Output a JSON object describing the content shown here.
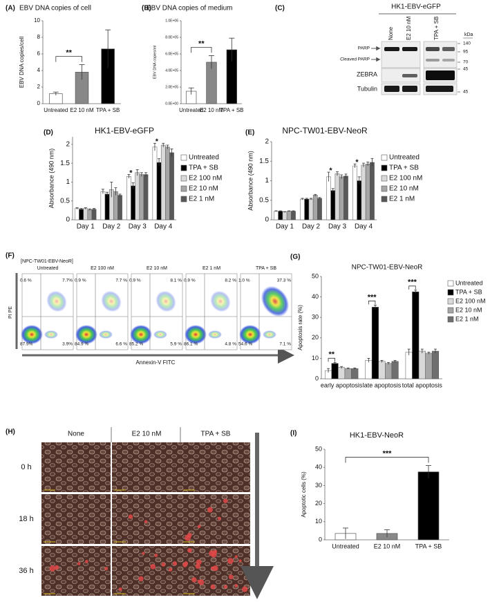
{
  "chart_data": [
    {
      "type": "bar",
      "panel": "(A)",
      "title": "EBV DNA copies  of cell",
      "ylabel": "EBV DNA copies/cell",
      "categories": [
        "Untreated",
        "E2 10 nM",
        "TPA + SB"
      ],
      "values": [
        1.2,
        3.8,
        6.6
      ],
      "errors": [
        0.2,
        0.9,
        2.3
      ],
      "colors": [
        "#ffffff",
        "#888888",
        "#000000"
      ],
      "ylim": [
        0,
        10
      ],
      "yticks": [
        0,
        2,
        4,
        6,
        8,
        10
      ],
      "annotations": [
        "**"
      ]
    },
    {
      "type": "bar",
      "panel": "(B)",
      "title": "EBV DNA copies  of medium",
      "ylabel": "EBV DNA copies/ml",
      "categories": [
        "Untreated",
        "E2 10 nM",
        "TPA + SB"
      ],
      "values": [
        150000,
        500000,
        650000
      ],
      "errors": [
        40000,
        80000,
        140000
      ],
      "colors": [
        "#ffffff",
        "#888888",
        "#000000"
      ],
      "ylim": [
        0,
        1000000
      ],
      "yticks": [
        {
          "value": 0,
          "label": "0.0E+00"
        },
        {
          "value": 200000,
          "label": "2.0E+05"
        },
        {
          "value": 400000,
          "label": "4.0E+05"
        },
        {
          "value": 600000,
          "label": "6.0E+05"
        },
        {
          "value": 800000,
          "label": "8.0E+05"
        },
        {
          "value": 1000000,
          "label": "1.0E+06"
        }
      ],
      "annotations": [
        "**"
      ]
    },
    {
      "type": "grouped-bar",
      "panel": "(D)",
      "title": "HK1-EBV-eGFP",
      "ylabel": "Absorbance (490 nm)",
      "categories": [
        "Day 1",
        "Day 2",
        "Day 3",
        "Day 4"
      ],
      "series": [
        {
          "name": "Untreated",
          "color": "#ffffff",
          "values": [
            0.3,
            0.75,
            1.15,
            1.93
          ],
          "errors": [
            0.02,
            0.06,
            0.05,
            0.1
          ]
        },
        {
          "name": "TPA + SB",
          "color": "#000000",
          "values": [
            0.28,
            0.68,
            0.9,
            1.52
          ],
          "errors": [
            0.02,
            0.05,
            0.08,
            0.1
          ]
        },
        {
          "name": "E2 100 nM",
          "color": "#d9d9d9",
          "values": [
            0.3,
            0.8,
            1.25,
            1.98
          ],
          "errors": [
            0.02,
            0.2,
            0.08,
            0.05
          ]
        },
        {
          "name": "E2 10 nM",
          "color": "#a6a6a6",
          "values": [
            0.27,
            0.75,
            1.2,
            1.93
          ],
          "errors": [
            0.02,
            0.1,
            0.05,
            0.05
          ]
        },
        {
          "name": "E2 1 nM",
          "color": "#595959",
          "values": [
            0.28,
            0.65,
            1.2,
            1.78
          ],
          "errors": [
            0.02,
            0.03,
            0.05,
            0.1
          ]
        }
      ],
      "ylim": [
        0,
        2.2
      ],
      "yticks": [
        0,
        0.5,
        1,
        1.5,
        2
      ],
      "annotations": [
        "*",
        "*"
      ]
    },
    {
      "type": "grouped-bar",
      "panel": "(E)",
      "title": "NPC-TW01-EBV-NeoR",
      "ylabel": "Absorbance (490 nm)",
      "categories": [
        "Day 1",
        "Day 2",
        "Day 3",
        "Day 4"
      ],
      "series": [
        {
          "name": "Untreated",
          "color": "#ffffff",
          "values": [
            0.22,
            0.53,
            1.1,
            1.38
          ],
          "errors": [
            0.01,
            0.02,
            0.12,
            0.05
          ]
        },
        {
          "name": "TPA + SB",
          "color": "#000000",
          "values": [
            0.22,
            0.53,
            0.75,
            1.0
          ],
          "errors": [
            0.01,
            0.02,
            0.05,
            0.1
          ]
        },
        {
          "name": "E2 100 nM",
          "color": "#d9d9d9",
          "values": [
            0.2,
            0.53,
            1.18,
            1.4
          ],
          "errors": [
            0.01,
            0.02,
            0.05,
            0.05
          ]
        },
        {
          "name": "E2 10 nM",
          "color": "#a6a6a6",
          "values": [
            0.22,
            0.63,
            1.1,
            1.43
          ],
          "errors": [
            0.01,
            0.02,
            0.05,
            0.05
          ]
        },
        {
          "name": "E2 1 nM",
          "color": "#595959",
          "values": [
            0.22,
            0.55,
            1.12,
            1.47
          ],
          "errors": [
            0.01,
            0.02,
            0.05,
            0.1
          ]
        }
      ],
      "ylim": [
        0,
        2
      ],
      "yticks": [
        0,
        0.5,
        1,
        1.5,
        2
      ],
      "annotations": [
        "*",
        "*"
      ]
    },
    {
      "type": "grouped-bar",
      "panel": "(G)",
      "title": "NPC-TW01-EBV-NeoR",
      "ylabel": "Apoptosis rate (%)",
      "categories": [
        "early apoptosis",
        "late apoptosis",
        "total apoptosis"
      ],
      "series": [
        {
          "name": "Untreated",
          "color": "#ffffff",
          "values": [
            4,
            9,
            13
          ],
          "errors": [
            1,
            1,
            1.5
          ]
        },
        {
          "name": "TPA + SB",
          "color": "#000000",
          "values": [
            7.5,
            35,
            42.5
          ],
          "errors": [
            0.5,
            1,
            0.8
          ]
        },
        {
          "name": "E2 100 nM",
          "color": "#d9d9d9",
          "values": [
            5.5,
            8.5,
            13.5
          ],
          "errors": [
            0.5,
            0.5,
            1
          ]
        },
        {
          "name": "E2 10 nM",
          "color": "#a6a6a6",
          "values": [
            5,
            7.5,
            12.5
          ],
          "errors": [
            0.3,
            0.5,
            0.5
          ]
        },
        {
          "name": "E2 1 nM",
          "color": "#6f6f6f",
          "values": [
            5,
            8.5,
            13.5
          ],
          "errors": [
            0.3,
            0.5,
            1
          ]
        }
      ],
      "ylim": [
        0,
        50
      ],
      "yticks": [
        0,
        10,
        20,
        30,
        40,
        50
      ],
      "annotations": [
        "**",
        "***",
        "***"
      ]
    },
    {
      "type": "bar",
      "panel": "(I)",
      "title": "HK1-EBV-NeoR",
      "ylabel": "Apoptotic cells (%)",
      "categories": [
        "Untreated",
        "E2 10 nM",
        "TPA + SB"
      ],
      "values": [
        3.5,
        3.5,
        37.5
      ],
      "errors": [
        3,
        2,
        3.5
      ],
      "colors": [
        "#ffffff",
        "#888888",
        "#000000"
      ],
      "ylim": [
        0,
        50
      ],
      "yticks": [
        0,
        10,
        20,
        30,
        40,
        50
      ],
      "annotations": [
        "***"
      ]
    }
  ],
  "blot": {
    "label": "(C)",
    "title": "HK1-EBV-eGFP",
    "lanes": [
      "None",
      "E2 10 nM",
      "TPA + SB"
    ],
    "unit": "kDa",
    "rows": [
      "PARP",
      "Cleaved PARP",
      "ZEBRA",
      "Tubulin"
    ],
    "markers": [
      140,
      95,
      70,
      45,
      45
    ]
  },
  "flow": {
    "label": "(F)",
    "sample": "[NPC-TW01-EBV-NeoR]",
    "xlabel": "Annexin-V FITC",
    "ylabel": "PI PE",
    "plots": [
      {
        "title": "Untreated",
        "quadrants": [
          "0.6 %",
          "7.7%",
          "87.9%",
          "3.9%"
        ]
      },
      {
        "title": "E2 100 nM",
        "quadrants": [
          "0.9 %",
          "7.7 %",
          "84.9 %",
          "6.6 %"
        ]
      },
      {
        "title": "E2 10 nM",
        "quadrants": [
          "0.9 %",
          "8.1 %",
          "85.2 %",
          "5.9 %"
        ]
      },
      {
        "title": "E2 1 nM",
        "quadrants": [
          "0.9 %",
          "8.2 %",
          "86.1 %",
          "4.8 %"
        ]
      },
      {
        "title": "TPA + SB",
        "quadrants": [
          "1.0 %",
          "37.3 %",
          "54.6 %",
          "7.1 %"
        ]
      }
    ]
  },
  "micrographs": {
    "label": "(H)",
    "columns": [
      "None",
      "E2 10 nM",
      "TPA + SB"
    ],
    "rows": [
      "0 h",
      "18 h",
      "36 h"
    ]
  }
}
